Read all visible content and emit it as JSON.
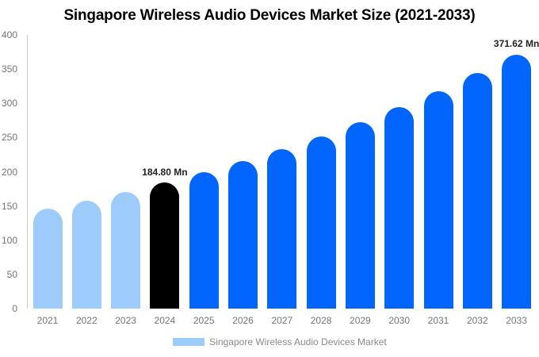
{
  "colors": {
    "historical": "#9DCBFA",
    "base_year": "#000000",
    "forecast": "#0366FC",
    "axis_line": "#CCCCCC",
    "tick_label": "#757575",
    "legend_text": "#8A8A8A",
    "annotation_text": "#222222",
    "title_text": "#000000"
  },
  "chart_data": {
    "type": "bar",
    "title": "Singapore Wireless Audio Devices Market Size (2021-2033)",
    "xlabel": "",
    "ylabel": "",
    "unit": "Mn",
    "ylim": [
      0,
      400
    ],
    "y_ticks": [
      0,
      50,
      100,
      150,
      200,
      250,
      300,
      350,
      400
    ],
    "grid": false,
    "categories": [
      "2021",
      "2022",
      "2023",
      "2024",
      "2025",
      "2026",
      "2027",
      "2028",
      "2029",
      "2030",
      "2031",
      "2032",
      "2033"
    ],
    "values": [
      146.4,
      158.2,
      171.0,
      184.8,
      199.7,
      215.8,
      233.3,
      252.1,
      272.4,
      294.4,
      318.2,
      343.9,
      371.62
    ],
    "bar_roles": [
      "historical",
      "historical",
      "historical",
      "base_year",
      "forecast",
      "forecast",
      "forecast",
      "forecast",
      "forecast",
      "forecast",
      "forecast",
      "forecast",
      "forecast"
    ],
    "annotations": [
      {
        "category": "2024",
        "text": "184.80 Mn"
      },
      {
        "category": "2033",
        "text": "371.62 Mn"
      }
    ],
    "legend": {
      "label": "Singapore Wireless Audio Devices Market",
      "swatch_role": "historical",
      "position": "bottom"
    }
  }
}
